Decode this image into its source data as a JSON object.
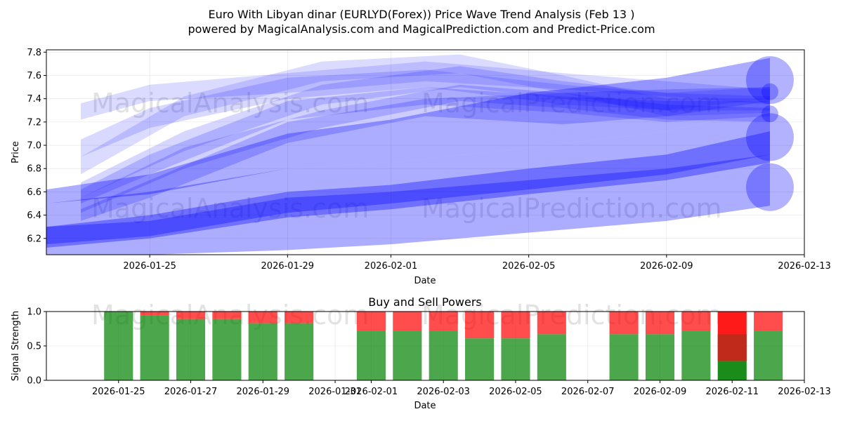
{
  "title_line1": "Euro With Libyan dinar (EURLYD(Forex)) Price Wave Trend Analysis (Feb 13 )",
  "title_line2": "powered by MagicalAnalysis.com and MagicalPrediction.com and Predict-Price.com",
  "watermarks": [
    "MagicalAnalysis.com",
    "MagicalPrediction.com"
  ],
  "colors": {
    "wave": "#0000ff",
    "buy": "#008000",
    "sell": "#ff0000",
    "buy_strong": "#1a8c1a",
    "sell_strong": "#ff1a1a",
    "mixed": "#c02a1a"
  },
  "chart_data": [
    {
      "type": "area",
      "name": "price-wave",
      "ylabel": "Price",
      "xlabel": "Date",
      "ylim": [
        6.06,
        7.82
      ],
      "xlim": [
        "2026-01-22",
        "2026-02-13"
      ],
      "yticks": [
        "6.2",
        "6.4",
        "6.6",
        "6.8",
        "7.0",
        "7.2",
        "7.4",
        "7.6",
        "7.8"
      ],
      "xticks": [
        "2026-01-25",
        "2026-01-29",
        "2026-02-01",
        "2026-02-05",
        "2026-02-09",
        "2026-02-13"
      ],
      "grid": true,
      "bands": [
        {
          "x": [
            "2026-01-22",
            "2026-01-25",
            "2026-01-29",
            "2026-02-01",
            "2026-02-05",
            "2026-02-09",
            "2026-02-12"
          ],
          "lower": [
            6.5,
            6.58,
            6.8,
            6.85,
            6.98,
            7.12,
            7.32
          ],
          "upper": [
            6.62,
            6.75,
            7.1,
            7.22,
            7.45,
            7.58,
            7.75
          ],
          "opacity": 0.32
        },
        {
          "x": [
            "2026-01-22",
            "2026-01-25",
            "2026-01-29",
            "2026-02-01",
            "2026-02-05",
            "2026-02-09",
            "2026-02-12"
          ],
          "lower": [
            6.15,
            6.22,
            6.42,
            6.5,
            6.62,
            6.75,
            6.92
          ],
          "upper": [
            6.5,
            6.6,
            6.8,
            6.85,
            6.98,
            7.12,
            7.32
          ],
          "opacity": 0.32
        },
        {
          "x": [
            "2026-01-22",
            "2026-01-25",
            "2026-01-29",
            "2026-02-01",
            "2026-02-05",
            "2026-02-09",
            "2026-02-12"
          ],
          "lower": [
            6.06,
            6.06,
            6.1,
            6.15,
            6.25,
            6.35,
            6.48
          ],
          "upper": [
            6.3,
            6.35,
            6.55,
            6.6,
            6.7,
            6.8,
            6.92
          ],
          "opacity": 0.32
        },
        {
          "x": [
            "2026-01-22",
            "2026-01-25",
            "2026-01-29",
            "2026-02-01",
            "2026-02-05",
            "2026-02-09",
            "2026-02-12"
          ],
          "lower": [
            6.12,
            6.2,
            6.38,
            6.45,
            6.58,
            6.7,
            6.85
          ],
          "upper": [
            6.3,
            6.4,
            6.6,
            6.66,
            6.8,
            6.92,
            7.12
          ],
          "opacity": 0.35
        },
        {
          "x": [
            "2026-01-23",
            "2026-01-25",
            "2026-01-29",
            "2026-02-02",
            "2026-02-06",
            "2026-02-09",
            "2026-02-12"
          ],
          "lower": [
            6.35,
            6.55,
            7.02,
            7.25,
            7.18,
            7.25,
            7.38
          ],
          "upper": [
            6.45,
            6.7,
            7.2,
            7.4,
            7.45,
            7.48,
            7.5
          ],
          "opacity": 0.2
        },
        {
          "x": [
            "2026-01-23",
            "2026-01-25",
            "2026-01-29",
            "2026-02-02",
            "2026-02-06",
            "2026-02-09",
            "2026-02-12"
          ],
          "lower": [
            6.5,
            6.75,
            7.22,
            7.35,
            7.28,
            7.2,
            7.25
          ],
          "upper": [
            6.62,
            6.92,
            7.38,
            7.5,
            7.42,
            7.38,
            7.38
          ],
          "opacity": 0.18
        },
        {
          "x": [
            "2026-01-23",
            "2026-01-25",
            "2026-01-29",
            "2026-02-02",
            "2026-02-06",
            "2026-02-09",
            "2026-02-12"
          ],
          "lower": [
            6.9,
            7.15,
            7.4,
            7.5,
            7.35,
            7.3,
            7.4
          ],
          "upper": [
            7.05,
            7.32,
            7.58,
            7.65,
            7.52,
            7.45,
            7.5
          ],
          "opacity": 0.15
        },
        {
          "x": [
            "2026-01-23",
            "2026-01-25",
            "2026-01-29",
            "2026-02-02",
            "2026-02-06",
            "2026-02-09",
            "2026-02-12"
          ],
          "lower": [
            7.22,
            7.38,
            7.45,
            7.55,
            7.48,
            7.42,
            7.35
          ],
          "upper": [
            7.36,
            7.52,
            7.62,
            7.72,
            7.62,
            7.55,
            7.48
          ],
          "opacity": 0.14
        },
        {
          "x": [
            "2026-01-23",
            "2026-01-26",
            "2026-01-30",
            "2026-02-03",
            "2026-02-06",
            "2026-02-09",
            "2026-02-12"
          ],
          "lower": [
            6.55,
            6.95,
            7.35,
            7.5,
            7.4,
            7.3,
            7.3
          ],
          "upper": [
            6.68,
            7.12,
            7.52,
            7.68,
            7.55,
            7.45,
            7.42
          ],
          "opacity": 0.16
        },
        {
          "x": [
            "2026-01-23",
            "2026-01-26",
            "2026-01-30",
            "2026-02-03",
            "2026-02-06",
            "2026-02-09",
            "2026-02-12"
          ],
          "lower": [
            6.75,
            7.25,
            7.55,
            7.62,
            7.45,
            7.25,
            7.28
          ],
          "upper": [
            6.9,
            7.42,
            7.72,
            7.78,
            7.6,
            7.4,
            7.4
          ],
          "opacity": 0.14
        },
        {
          "x": [
            "2026-01-23",
            "2026-01-26",
            "2026-01-30",
            "2026-02-03",
            "2026-02-06",
            "2026-02-09",
            "2026-02-12"
          ],
          "lower": [
            6.42,
            6.8,
            7.15,
            7.38,
            7.32,
            7.22,
            7.2
          ],
          "upper": [
            6.55,
            6.98,
            7.3,
            7.52,
            7.45,
            7.35,
            7.32
          ],
          "opacity": 0.18
        }
      ],
      "end_caps": [
        7.56,
        7.07,
        6.64,
        7.46,
        7.27
      ]
    },
    {
      "type": "bar",
      "name": "buy-sell-powers",
      "title": "Buy and Sell Powers",
      "ylabel": "Signal Strength",
      "xlabel": "Date",
      "ylim": [
        0,
        1
      ],
      "yticks": [
        "0.0",
        "0.5",
        "1.0"
      ],
      "xlim": [
        "2026-01-23",
        "2026-02-13"
      ],
      "xticks": [
        "2026-01-25",
        "2026-01-27",
        "2026-01-29",
        "2026-01-31",
        "2026-02-01",
        "2026-02-03",
        "2026-02-05",
        "2026-02-07",
        "2026-02-09",
        "2026-02-11",
        "2026-02-13"
      ],
      "bars": [
        {
          "date": "2026-01-25",
          "buy": 1.0
        },
        {
          "date": "2026-01-26",
          "buy": 0.94
        },
        {
          "date": "2026-01-27",
          "buy": 0.89
        },
        {
          "date": "2026-01-28",
          "buy": 0.89
        },
        {
          "date": "2026-01-29",
          "buy": 0.83
        },
        {
          "date": "2026-01-30",
          "buy": 0.83
        },
        {
          "date": "2026-02-01",
          "buy": 0.72
        },
        {
          "date": "2026-02-02",
          "buy": 0.72
        },
        {
          "date": "2026-02-03",
          "buy": 0.72
        },
        {
          "date": "2026-02-04",
          "buy": 0.61
        },
        {
          "date": "2026-02-05",
          "buy": 0.61
        },
        {
          "date": "2026-02-06",
          "buy": 0.67
        },
        {
          "date": "2026-02-08",
          "buy": 0.67
        },
        {
          "date": "2026-02-09",
          "buy": 0.67
        },
        {
          "date": "2026-02-10",
          "buy": 0.72
        },
        {
          "date": "2026-02-11",
          "buy": 0.28,
          "mixed_top": 0.67
        },
        {
          "date": "2026-02-12",
          "buy": 0.72
        }
      ]
    }
  ]
}
